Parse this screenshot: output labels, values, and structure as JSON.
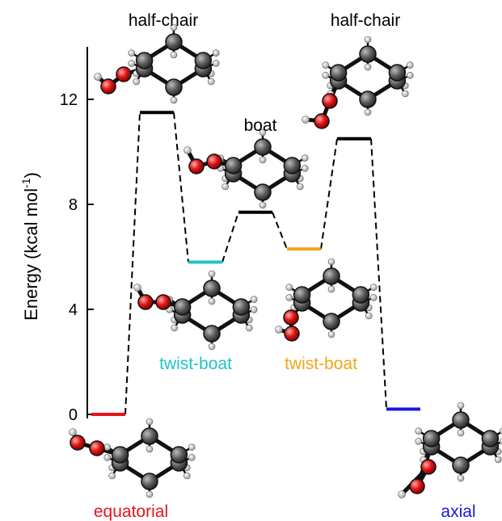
{
  "chart_data": {
    "type": "energy-level diagram",
    "ylabel": "Energy (kcal mol",
    "ylabel_superscript": "-1",
    "ylabel_suffix": ")",
    "yticks": [
      0,
      4,
      8,
      12
    ],
    "ylim": [
      -0.3,
      14
    ],
    "grid": false,
    "legend": "none",
    "levels": [
      {
        "label": "equatorial",
        "energy": 0.0,
        "color": "#e8141b"
      },
      {
        "label": "half-chair",
        "energy": 11.5,
        "color": "#000000"
      },
      {
        "label": "twist-boat",
        "energy": 5.8,
        "color": "#22c3c8"
      },
      {
        "label": "boat",
        "energy": 7.7,
        "color": "#000000"
      },
      {
        "label": "twist-boat",
        "energy": 6.3,
        "color": "#f3a41b"
      },
      {
        "label": "half-chair",
        "energy": 10.5,
        "color": "#000000"
      },
      {
        "label": "axial",
        "energy": 0.2,
        "color": "#1818e0"
      }
    ]
  }
}
